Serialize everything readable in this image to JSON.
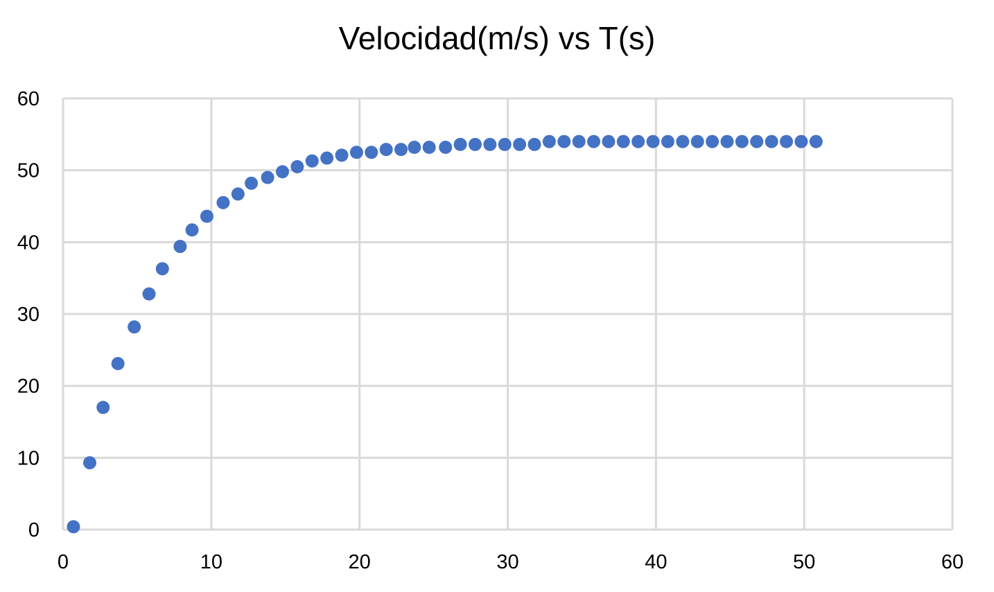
{
  "chart_data": {
    "type": "scatter",
    "title": "Velocidad(m/s) vs T(s)",
    "xlabel": "",
    "ylabel": "",
    "xlim": [
      0,
      60
    ],
    "ylim": [
      0,
      60
    ],
    "x_ticks": [
      0,
      10,
      20,
      30,
      40,
      50,
      60
    ],
    "y_ticks": [
      0,
      10,
      20,
      30,
      40,
      50,
      60
    ],
    "grid": true,
    "legend": "none",
    "marker_color": "#4472C4",
    "series": [
      {
        "x": [
          0.7,
          1.8,
          2.7,
          3.7,
          4.8,
          5.8,
          6.7,
          7.9,
          8.7,
          9.7,
          10.8,
          11.8,
          12.7,
          13.8,
          14.8,
          15.8,
          16.8,
          17.8,
          18.8,
          19.8,
          20.8,
          21.8,
          22.8,
          23.7,
          24.7,
          25.8,
          26.8,
          27.8,
          28.8,
          29.8,
          30.8,
          31.8,
          32.8,
          33.8,
          34.8,
          35.8,
          36.8,
          37.8,
          38.8,
          39.8,
          40.8,
          41.8,
          42.8,
          43.8,
          44.8,
          45.8,
          46.8,
          47.8,
          48.8,
          49.8,
          50.8
        ],
        "y": [
          0.4,
          9.3,
          17.0,
          23.1,
          28.2,
          32.8,
          36.3,
          39.4,
          41.7,
          43.6,
          45.5,
          46.7,
          48.2,
          49.0,
          49.8,
          50.5,
          51.3,
          51.7,
          52.1,
          52.5,
          52.5,
          52.9,
          52.9,
          53.2,
          53.2,
          53.2,
          53.6,
          53.6,
          53.6,
          53.6,
          53.6,
          53.6,
          54.0,
          54.0,
          54.0,
          54.0,
          54.0,
          54.0,
          54.0,
          54.0,
          54.0,
          54.0,
          54.0,
          54.0,
          54.0,
          54.0,
          54.0,
          54.0,
          54.0,
          54.0,
          54.0
        ]
      }
    ]
  }
}
